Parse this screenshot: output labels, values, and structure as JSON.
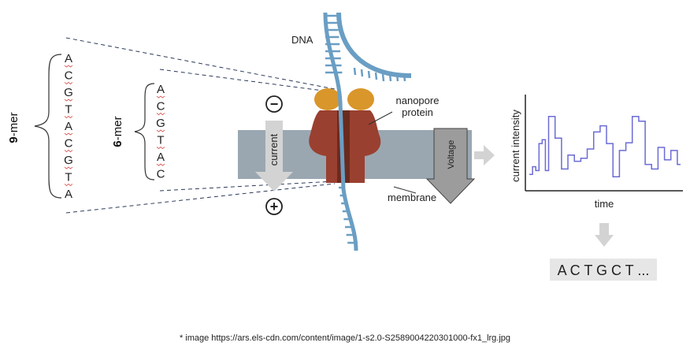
{
  "sequences": {
    "nine_mer": {
      "number": "9",
      "suffix": "-mer",
      "bases": [
        "A",
        "C",
        "G",
        "T",
        "A",
        "C",
        "G",
        "T",
        "A"
      ]
    },
    "six_mer": {
      "number": "6",
      "suffix": "-mer",
      "bases": [
        "A",
        "C",
        "G",
        "T",
        "A",
        "C"
      ]
    }
  },
  "labels": {
    "dna": "DNA",
    "nanopore_line1": "nanopore",
    "nanopore_line2": "protein",
    "current": "current",
    "voltage": "Voltage",
    "membrane": "membrane",
    "current_intensity": "current intensity",
    "time": "time"
  },
  "signs": {
    "top": "−",
    "bottom": "+"
  },
  "output_sequence": "A C T G C T ...",
  "caption": "* image https://ars.els-cdn.com/content/image/1-s2.0-S2589004220301000-fx1_lrg.jpg",
  "colors": {
    "dna": "#6a9ec4",
    "membrane": "#9aa7b1",
    "pore": "#9a4030",
    "pore_cap": "#d9962b",
    "signal": "#6b6bd6",
    "arrow": "#c9c9c9",
    "output_box": "#e6e6e6"
  },
  "signal_levels": [
    0.15,
    0.25,
    0.2,
    0.55,
    0.6,
    0.2,
    0.9,
    0.9,
    0.62,
    0.62,
    0.22,
    0.22,
    0.4,
    0.4,
    0.32,
    0.32,
    0.36,
    0.36,
    0.48,
    0.48,
    0.7,
    0.7,
    0.78,
    0.78,
    0.55,
    0.55,
    0.12,
    0.12,
    0.46,
    0.46,
    0.56,
    0.56,
    0.9,
    0.9,
    0.84,
    0.84,
    0.28,
    0.28,
    0.22,
    0.22,
    0.5,
    0.5,
    0.34,
    0.34,
    0.46,
    0.46,
    0.28,
    0.28
  ]
}
